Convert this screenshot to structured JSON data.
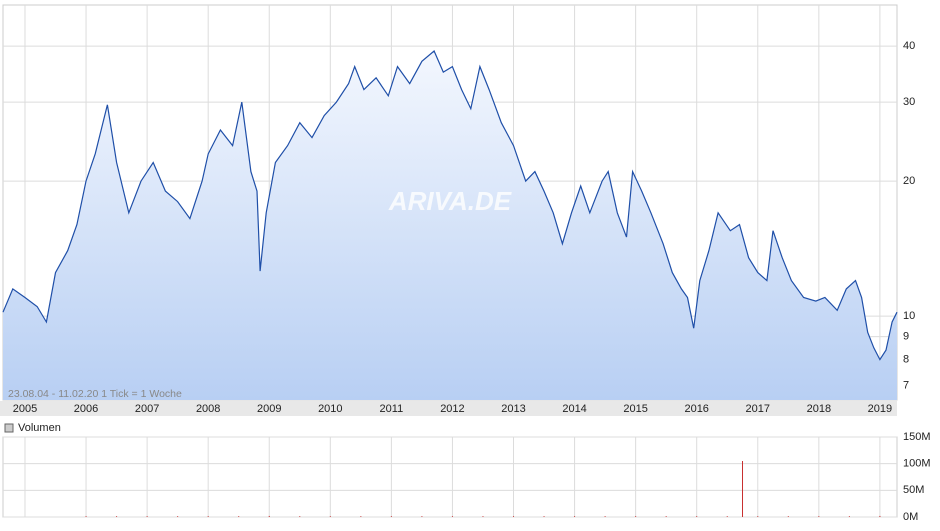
{
  "chart_data": {
    "type": "line",
    "watermark": "ARIVA.DE",
    "annotation": "23.08.04 - 11.02.20    1 Tick = 1 Woche",
    "log_scale": true,
    "grid": true,
    "xlim": [
      2004.64,
      2019.28
    ],
    "xticks": [
      2005,
      2006,
      2007,
      2008,
      2009,
      2010,
      2011,
      2012,
      2013,
      2014,
      2015,
      2016,
      2017,
      2018,
      2019
    ],
    "ylim": [
      6.5,
      49.4
    ],
    "yticks": [
      7,
      8,
      9,
      10,
      20,
      30,
      40
    ],
    "series": [
      {
        "color": "#1f4fa8",
        "x": [
          2004.64,
          2004.8,
          2005.0,
          2005.2,
          2005.35,
          2005.5,
          2005.7,
          2005.85,
          2006.0,
          2006.15,
          2006.35,
          2006.5,
          2006.7,
          2006.9,
          2007.1,
          2007.3,
          2007.5,
          2007.7,
          2007.9,
          2008.0,
          2008.2,
          2008.4,
          2008.55,
          2008.7,
          2008.8,
          2008.85,
          2008.95,
          2009.1,
          2009.3,
          2009.5,
          2009.7,
          2009.9,
          2010.1,
          2010.3,
          2010.4,
          2010.55,
          2010.75,
          2010.95,
          2011.1,
          2011.3,
          2011.5,
          2011.7,
          2011.85,
          2012.0,
          2012.15,
          2012.3,
          2012.45,
          2012.6,
          2012.8,
          2013.0,
          2013.2,
          2013.35,
          2013.5,
          2013.65,
          2013.8,
          2013.95,
          2014.1,
          2014.25,
          2014.45,
          2014.55,
          2014.7,
          2014.85,
          2014.95,
          2015.1,
          2015.25,
          2015.45,
          2015.6,
          2015.75,
          2015.85,
          2015.95,
          2016.05,
          2016.2,
          2016.35,
          2016.55,
          2016.7,
          2016.85,
          2017.0,
          2017.15,
          2017.25,
          2017.4,
          2017.55,
          2017.75,
          2017.95,
          2018.1,
          2018.3,
          2018.45,
          2018.6,
          2018.7,
          2018.8,
          2018.9,
          2019.0,
          2019.1,
          2019.2,
          2019.28
        ],
        "values": [
          10.2,
          11.5,
          11,
          10.5,
          9.7,
          12.5,
          14,
          16,
          20,
          23,
          29.6,
          22,
          17,
          20,
          22,
          19,
          18,
          16.5,
          20,
          23,
          26,
          24,
          30,
          21,
          19,
          12.6,
          17,
          22,
          24,
          27,
          25,
          28,
          30,
          33,
          36,
          32,
          34,
          31,
          36,
          33,
          37,
          39,
          35,
          36,
          32,
          29,
          36,
          32,
          27,
          24,
          20,
          21,
          19,
          17,
          14.5,
          17,
          19.5,
          17,
          20,
          21,
          17,
          15,
          21,
          19,
          17,
          14.5,
          12.5,
          11.5,
          11,
          9.4,
          12,
          14,
          17,
          15.5,
          16,
          13.5,
          12.5,
          12,
          15.5,
          13.5,
          12,
          11,
          10.8,
          11,
          10.3,
          11.5,
          12,
          11,
          9.2,
          8.5,
          8,
          8.4,
          9.7,
          10.2
        ]
      }
    ],
    "volume": {
      "legend": "Volumen",
      "ylim": [
        0,
        150000000
      ],
      "yticks": [
        {
          "value": 0,
          "label": "0M"
        },
        {
          "value": 50000000,
          "label": "50M"
        },
        {
          "value": 100000000,
          "label": "100M"
        },
        {
          "value": 150000000,
          "label": "150M"
        }
      ],
      "series": [
        {
          "color": "#c83030",
          "x": [
            2006.0,
            2006.5,
            2007.0,
            2007.5,
            2008.0,
            2008.5,
            2009.0,
            2009.5,
            2010.0,
            2010.5,
            2011.0,
            2011.5,
            2012.0,
            2012.5,
            2013.0,
            2013.5,
            2014.0,
            2014.5,
            2015.0,
            2015.5,
            2016.0,
            2016.5,
            2016.75,
            2017.0,
            2017.5,
            2018.0,
            2018.5,
            2019.0
          ],
          "values": [
            1500000,
            1500000,
            1500000,
            1500000,
            1500000,
            1500000,
            2000000,
            1500000,
            1500000,
            1500000,
            1500000,
            1500000,
            1500000,
            1500000,
            1500000,
            1500000,
            1500000,
            1500000,
            1500000,
            1500000,
            1500000,
            1500000,
            105000000,
            1500000,
            1500000,
            1500000,
            1500000,
            2000000
          ]
        }
      ]
    }
  }
}
